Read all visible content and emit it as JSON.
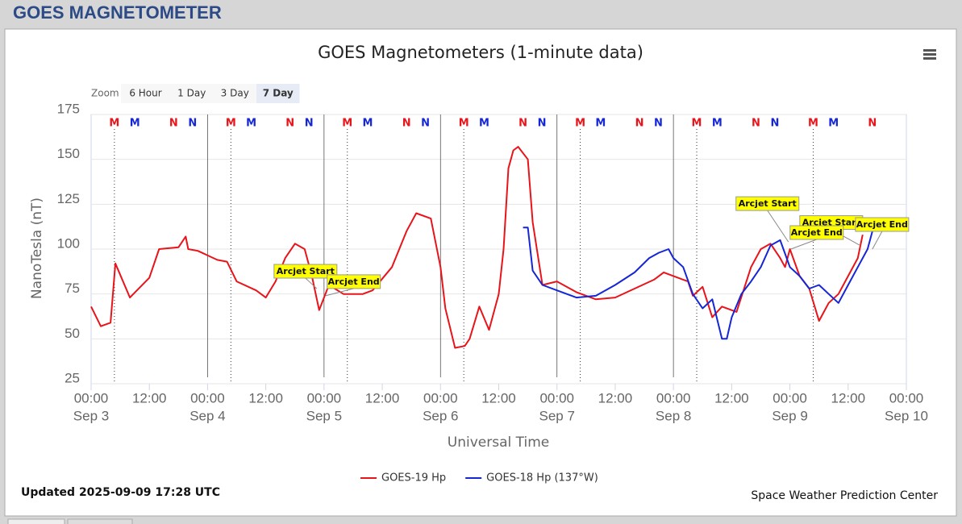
{
  "header": "GOES MAGNETOMETER",
  "zoom": {
    "label": "Zoom",
    "buttons": [
      "6 Hour",
      "1 Day",
      "3 Day",
      "7 Day"
    ],
    "selected": "7 Day"
  },
  "chart_data": {
    "type": "line",
    "title": "GOES Magnetometers (1-minute data)",
    "xlabel": "Universal Time",
    "ylabel": "NanoTesla (nT)",
    "xlim": [
      0,
      168
    ],
    "xticks": [
      {
        "value": 0,
        "label": "00:00",
        "sublabel": "Sep 3"
      },
      {
        "value": 12,
        "label": "12:00"
      },
      {
        "value": 24,
        "label": "00:00",
        "sublabel": "Sep 4"
      },
      {
        "value": 36,
        "label": "12:00"
      },
      {
        "value": 48,
        "label": "00:00",
        "sublabel": "Sep 5"
      },
      {
        "value": 60,
        "label": "12:00"
      },
      {
        "value": 72,
        "label": "00:00",
        "sublabel": "Sep 6"
      },
      {
        "value": 84,
        "label": "12:00"
      },
      {
        "value": 96,
        "label": "00:00",
        "sublabel": "Sep 7"
      },
      {
        "value": 108,
        "label": "12:00"
      },
      {
        "value": 120,
        "label": "00:00",
        "sublabel": "Sep 8"
      },
      {
        "value": 132,
        "label": "12:00"
      },
      {
        "value": 144,
        "label": "00:00",
        "sublabel": "Sep 9"
      },
      {
        "value": 156,
        "label": "12:00"
      },
      {
        "value": 168,
        "label": "00:00",
        "sublabel": "Sep 10"
      }
    ],
    "ylim": [
      25,
      175
    ],
    "yticks": [
      25,
      50,
      75,
      100,
      125,
      150,
      175
    ],
    "grid": true,
    "day_lines": [
      24,
      48,
      72,
      96,
      120
    ],
    "series": [
      {
        "name": "GOES-19 Hp",
        "color": "#e8141a",
        "x": [
          0,
          2,
          4,
          5,
          8,
          12,
          14,
          18,
          19.5,
          20,
          22,
          26,
          28,
          30,
          34,
          36,
          38,
          40,
          42,
          44,
          45.5,
          47,
          49,
          52,
          56,
          58,
          62,
          65,
          67,
          70,
          72,
          73,
          75,
          77,
          78,
          80,
          82,
          84,
          85,
          86,
          87,
          88,
          90,
          91,
          93,
          96,
          100,
          104,
          108,
          112,
          116,
          118,
          120,
          122,
          123,
          124,
          126,
          128,
          130,
          133,
          136,
          138,
          140,
          142,
          143,
          144,
          146,
          148,
          150,
          152,
          154,
          156,
          158,
          159
        ],
        "values": [
          68,
          57,
          59,
          92,
          73,
          84,
          100,
          101,
          107,
          100,
          99,
          94,
          93,
          82,
          77,
          73,
          82,
          95,
          103,
          100,
          85,
          66,
          80,
          75,
          75,
          77,
          90,
          110,
          120,
          117,
          90,
          67,
          45,
          46,
          50,
          68,
          55,
          75,
          100,
          145,
          155,
          157,
          150,
          115,
          80,
          82,
          76,
          72,
          73,
          78,
          83,
          87,
          85,
          83,
          82,
          74,
          79,
          62,
          68,
          65,
          90,
          100,
          103,
          95,
          90,
          100,
          85,
          78,
          60,
          70,
          75,
          85,
          95,
          108
        ]
      },
      {
        "name": "GOES-18 Hp (137°W)",
        "color": "#1426d6",
        "x": [
          89,
          90,
          91,
          93,
          96,
          100,
          104,
          108,
          112,
          115,
          117,
          119,
          120,
          122,
          124,
          126,
          128,
          130,
          131,
          132,
          134,
          136,
          138,
          140,
          142,
          144,
          146,
          148,
          150,
          152,
          154,
          156,
          158,
          160,
          161
        ],
        "values": [
          112,
          112,
          88,
          80,
          77,
          73,
          74,
          80,
          87,
          95,
          98,
          100,
          95,
          90,
          75,
          67,
          72,
          50,
          50,
          62,
          75,
          82,
          90,
          102,
          105,
          90,
          85,
          78,
          80,
          75,
          70,
          80,
          90,
          100,
          110
        ]
      }
    ],
    "markers": [
      {
        "label": "M",
        "x": 4.8,
        "color": "#e8141a"
      },
      {
        "label": "M",
        "x": 9,
        "color": "#1426d6"
      },
      {
        "label": "N",
        "x": 17,
        "color": "#e8141a"
      },
      {
        "label": "N",
        "x": 20.9,
        "color": "#1426d6"
      },
      {
        "label": "M",
        "x": 28.8,
        "color": "#e8141a"
      },
      {
        "label": "M",
        "x": 33,
        "color": "#1426d6"
      },
      {
        "label": "N",
        "x": 41,
        "color": "#e8141a"
      },
      {
        "label": "N",
        "x": 44.9,
        "color": "#1426d6"
      },
      {
        "label": "M",
        "x": 52.8,
        "color": "#e8141a"
      },
      {
        "label": "M",
        "x": 57,
        "color": "#1426d6"
      },
      {
        "label": "N",
        "x": 65,
        "color": "#e8141a"
      },
      {
        "label": "N",
        "x": 68.9,
        "color": "#1426d6"
      },
      {
        "label": "M",
        "x": 76.8,
        "color": "#e8141a"
      },
      {
        "label": "M",
        "x": 81,
        "color": "#1426d6"
      },
      {
        "label": "N",
        "x": 89,
        "color": "#e8141a"
      },
      {
        "label": "N",
        "x": 92.9,
        "color": "#1426d6"
      },
      {
        "label": "M",
        "x": 100.8,
        "color": "#e8141a"
      },
      {
        "label": "M",
        "x": 105,
        "color": "#1426d6"
      },
      {
        "label": "N",
        "x": 113,
        "color": "#e8141a"
      },
      {
        "label": "N",
        "x": 116.9,
        "color": "#1426d6"
      },
      {
        "label": "M",
        "x": 124.8,
        "color": "#e8141a"
      },
      {
        "label": "M",
        "x": 129,
        "color": "#1426d6"
      },
      {
        "label": "N",
        "x": 137,
        "color": "#e8141a"
      },
      {
        "label": "N",
        "x": 140.9,
        "color": "#1426d6"
      },
      {
        "label": "M",
        "x": 148.8,
        "color": "#e8141a"
      },
      {
        "label": "M",
        "x": 153,
        "color": "#1426d6"
      },
      {
        "label": "N",
        "x": 161,
        "color": "#e8141a"
      }
    ],
    "annotations": [
      {
        "text": "Arcjet Start",
        "x": 46.5,
        "y": 78
      },
      {
        "text": "Arcjet End",
        "x": 48.3,
        "y": 74
      },
      {
        "text": "Arcjet Start",
        "x": 143.7,
        "y": 104
      },
      {
        "text": "Arcjet Start",
        "x": 158.5,
        "y": 102
      },
      {
        "text": "Arcjet End",
        "x": 144.2,
        "y": 100
      },
      {
        "text": "Arcjet End",
        "x": 161,
        "y": 100
      }
    ]
  },
  "footer": {
    "updated": "Updated 2025-09-09 17:28 UTC",
    "credit": "Space Weather Prediction Center"
  }
}
